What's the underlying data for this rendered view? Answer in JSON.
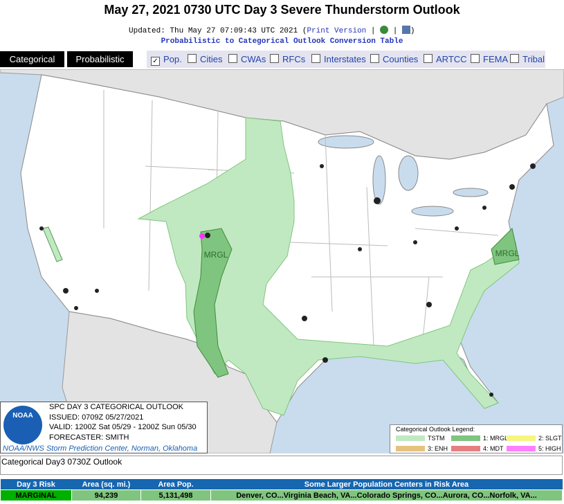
{
  "header": {
    "title": "May 27, 2021 0730 UTC Day 3 Severe Thunderstorm Outlook",
    "updated": "Updated: Thu May 27 07:09:43 UTC 2021 (",
    "print_link": "Print Version",
    "updated_end": ")",
    "conversion_link": "Probabilistic to Categorical Outlook Conversion Table"
  },
  "tabs": [
    "Categorical",
    "Probabilistic"
  ],
  "layers": [
    "Pop.",
    "Cities",
    "CWAs",
    "RFCs",
    "Interstates",
    "Counties",
    "ARTCC",
    "FEMA",
    "Tribal"
  ],
  "map": {
    "labels": [
      "MRGL",
      "MRGL"
    ]
  },
  "info_box": {
    "lines": [
      "SPC DAY 3 CATEGORICAL OUTLOOK",
      "ISSUED: 0709Z 05/27/2021",
      "VALID: 1200Z Sat 05/29 - 1200Z Sun 05/30",
      "FORECASTER: SMITH"
    ],
    "credit": "NOAA/NWS Storm Prediction Center, Norman, Oklahoma",
    "logo": "NOAA"
  },
  "legend": {
    "title": "Categorical Outlook Legend:",
    "items": [
      "TSTM",
      "1: MRGL",
      "2: SLGT",
      "3: ENH",
      "4: MDT",
      "5: HIGH"
    ]
  },
  "caption": "Categorical Day3 0730Z Outlook",
  "table": {
    "headers": [
      "Day 3 Risk",
      "Area (sq. mi.)",
      "Area Pop.",
      "Some Larger Population Centers in Risk Area"
    ],
    "rows": [
      [
        "MARGINAL",
        "94,239",
        "5,131,498",
        "Denver, CO...Virginia Beach, VA...Colorado Springs, CO...Aurora, CO...Norfolk, VA..."
      ]
    ]
  }
}
